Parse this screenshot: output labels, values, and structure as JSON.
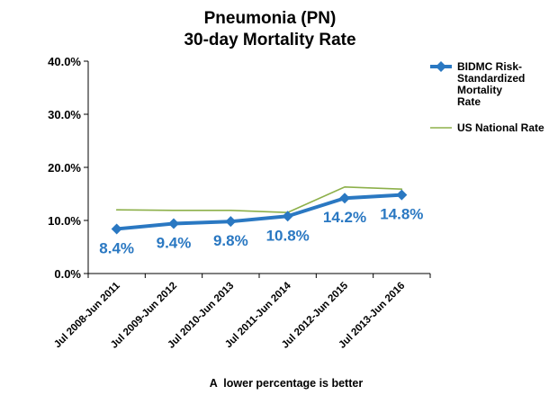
{
  "chart_data": {
    "type": "line",
    "title": [
      "Pneumonia (PN)",
      "30-day Mortality Rate"
    ],
    "categories": [
      "Jul 2008-Jun 2011",
      "Jul 2009-Jun 2012",
      "Jul 2010-Jun 2013",
      "Jul 2011-Jun 2014",
      "Jul 2012-Jun 2015",
      "Jul 2013-Jun 2016"
    ],
    "series": [
      {
        "name": "BIDMC Risk-Standardized Mortality Rate",
        "legend_lines": [
          "BIDMC Risk-",
          "Standardized",
          "Mortality",
          "Rate"
        ],
        "values": [
          8.4,
          9.4,
          9.8,
          10.8,
          14.2,
          14.8
        ],
        "data_labels": [
          "8.4%",
          "9.4%",
          "9.8%",
          "10.8%",
          "14.2%",
          "14.8%"
        ],
        "color": "#2a78c2",
        "marker": "diamond"
      },
      {
        "name": "US National Rate",
        "legend_lines": [
          "US National Rate"
        ],
        "values": [
          12.0,
          11.9,
          11.9,
          11.5,
          16.3,
          15.9
        ],
        "color": "#8db04a",
        "marker": "none"
      }
    ],
    "ylim": [
      0,
      40
    ],
    "yticks": [
      "0.0%",
      "10.0%",
      "20.0%",
      "30.0%",
      "40.0%"
    ],
    "ytick_values": [
      0,
      10,
      20,
      30,
      40
    ],
    "grid": false,
    "legend_position": "right",
    "note": "A  lower percentage is better"
  }
}
